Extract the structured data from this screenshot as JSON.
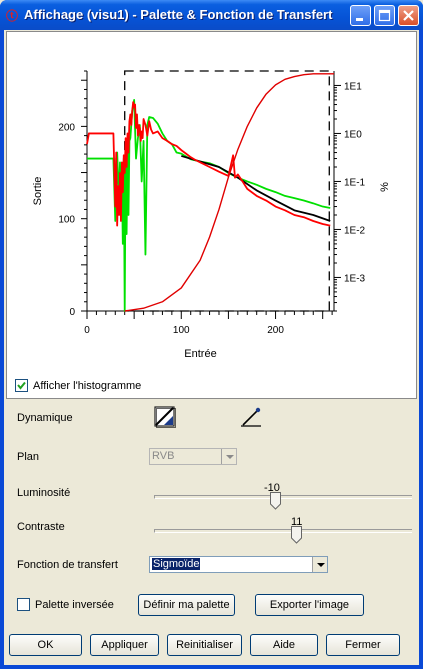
{
  "window": {
    "title": "Affichage (visu1) - Palette & Fonction de Transfert"
  },
  "chart_data": {
    "type": "line",
    "xlabel": "Entrée",
    "ylabel": "Sortie",
    "y2label": "%",
    "xlim": [
      0,
      262
    ],
    "ylim": [
      0,
      260
    ],
    "x_ticks": [
      0,
      100,
      200
    ],
    "y_ticks": [
      0,
      100,
      200
    ],
    "y2_scale": "log",
    "y2lim": [
      0.0002,
      20
    ],
    "y2_ticks": [
      "1E1",
      "1E0",
      "1E-1",
      "1E-2",
      "1E-3"
    ],
    "grid": false,
    "dynamic_range": [
      40,
      257
    ],
    "series": [
      {
        "color": "#00e000",
        "x": [
          0,
          2,
          4,
          6,
          8,
          10,
          12,
          14,
          16,
          18,
          20,
          22,
          24,
          26,
          28,
          30,
          31,
          32,
          33,
          34,
          35,
          36,
          37,
          38,
          39,
          40,
          41,
          42,
          43,
          44,
          45,
          46,
          48,
          50,
          52,
          54,
          56,
          58,
          60,
          62,
          64,
          66,
          70,
          75,
          80,
          85,
          90,
          95,
          100,
          110,
          120,
          130,
          140,
          150,
          160,
          170,
          180,
          190,
          200,
          210,
          220,
          230,
          240,
          250,
          258
        ],
        "y": [
          0.3,
          0.3,
          0.3,
          0.3,
          0.3,
          0.3,
          0.3,
          0.3,
          0.3,
          0.3,
          0.3,
          0.3,
          0.3,
          0.3,
          0.3,
          0.015,
          0.3,
          0.4,
          0.12,
          0.05,
          0.25,
          0.04,
          0.12,
          0.005,
          0.3,
          0.0002,
          0.5,
          0.008,
          0.5,
          0.02,
          0.7,
          0.8,
          3,
          5,
          0.3,
          0.8,
          1.5,
          0.1,
          0.7,
          0.003,
          1.5,
          2.2,
          2.1,
          1.6,
          1.0,
          0.7,
          0.6,
          0.4,
          0.38,
          0.29,
          0.26,
          0.24,
          0.2,
          0.15,
          0.12,
          0.1,
          0.085,
          0.07,
          0.06,
          0.05,
          0.045,
          0.04,
          0.035,
          0.03,
          0.028
        ]
      },
      {
        "color": "#000000",
        "x": [
          100,
          120,
          140,
          160,
          180,
          200,
          220,
          240,
          258
        ],
        "y": [
          0.34,
          0.26,
          0.2,
          0.12,
          0.065,
          0.04,
          0.025,
          0.02,
          0.015
        ]
      },
      {
        "color": "#ff0000",
        "x": [
          0,
          2,
          4,
          6,
          8,
          10,
          12,
          14,
          16,
          18,
          20,
          22,
          24,
          26,
          28,
          30,
          31,
          32,
          33,
          34,
          35,
          36,
          37,
          38,
          39,
          40,
          41,
          42,
          43,
          44,
          45,
          46,
          47,
          48,
          49,
          50,
          51,
          52,
          53,
          54,
          55,
          56,
          57,
          58,
          59,
          60,
          62,
          64,
          66,
          68,
          70,
          75,
          80,
          85,
          90,
          95,
          100,
          105,
          110,
          115,
          120,
          130,
          140,
          150,
          155,
          157,
          160,
          165,
          170,
          180,
          190,
          200,
          210,
          220,
          230,
          240,
          250,
          258
        ],
        "y": [
          0.6,
          1.0,
          1.0,
          1.0,
          1.0,
          1.0,
          1.0,
          1.0,
          1.0,
          1.0,
          1.0,
          1.0,
          1.0,
          1.0,
          1.0,
          0.03,
          0.4,
          0.012,
          0.08,
          0.02,
          0.15,
          0.015,
          0.25,
          0.06,
          0.35,
          0.15,
          0.8,
          0.2,
          1.0,
          0.4,
          1.8,
          2.5,
          1.5,
          3.0,
          4.5,
          3.5,
          4.0,
          1.3,
          2.5,
          0.9,
          1.5,
          1.3,
          0.7,
          1.1,
          0.8,
          2.0,
          1.5,
          0.9,
          1.8,
          1.2,
          1.0,
          1.1,
          0.8,
          0.7,
          0.6,
          0.55,
          0.45,
          0.38,
          0.32,
          0.28,
          0.25,
          0.2,
          0.16,
          0.13,
          0.35,
          0.12,
          0.14,
          0.1,
          0.07,
          0.05,
          0.04,
          0.03,
          0.025,
          0.02,
          0.018,
          0.015,
          0.013,
          0.012
        ]
      },
      {
        "color": "#e00000",
        "name": "",
        "x": [
          40,
          60,
          80,
          100,
          120,
          130,
          140,
          150,
          160,
          170,
          180,
          190,
          200,
          210,
          220,
          230,
          240,
          250,
          257,
          262
        ],
        "y": [
          0,
          3,
          10,
          25,
          55,
          80,
          110,
          145,
          175,
          200,
          220,
          235,
          245,
          251,
          254,
          256,
          257,
          257,
          257,
          257
        ]
      }
    ]
  },
  "histogram": {
    "label": "Afficher l'histogramme",
    "checked": true
  },
  "dynamique": {
    "label": "Dynamique"
  },
  "plan": {
    "label": "Plan",
    "value": "RVB"
  },
  "luminosite": {
    "label": "Luminosité",
    "value": "-10",
    "fraction": 0.47
  },
  "contraste": {
    "label": "Contraste",
    "value": "11",
    "fraction": 0.55
  },
  "fonction": {
    "label": "Fonction de transfert",
    "value": "Sigmoïde"
  },
  "palette": {
    "label": "Palette inversée",
    "checked": false
  },
  "buttons": {
    "definir": "Définir ma palette",
    "exporter": "Exporter l'image",
    "ok": "OK",
    "appliquer": "Appliquer",
    "reinit": "Reinitialiser",
    "aide": "Aide",
    "fermer": "Fermer"
  },
  "colors": {
    "titlebar": "#0a5fe0",
    "histogram_green": "#00e000",
    "histogram_red": "#ff0000",
    "curve": "#e00000"
  }
}
